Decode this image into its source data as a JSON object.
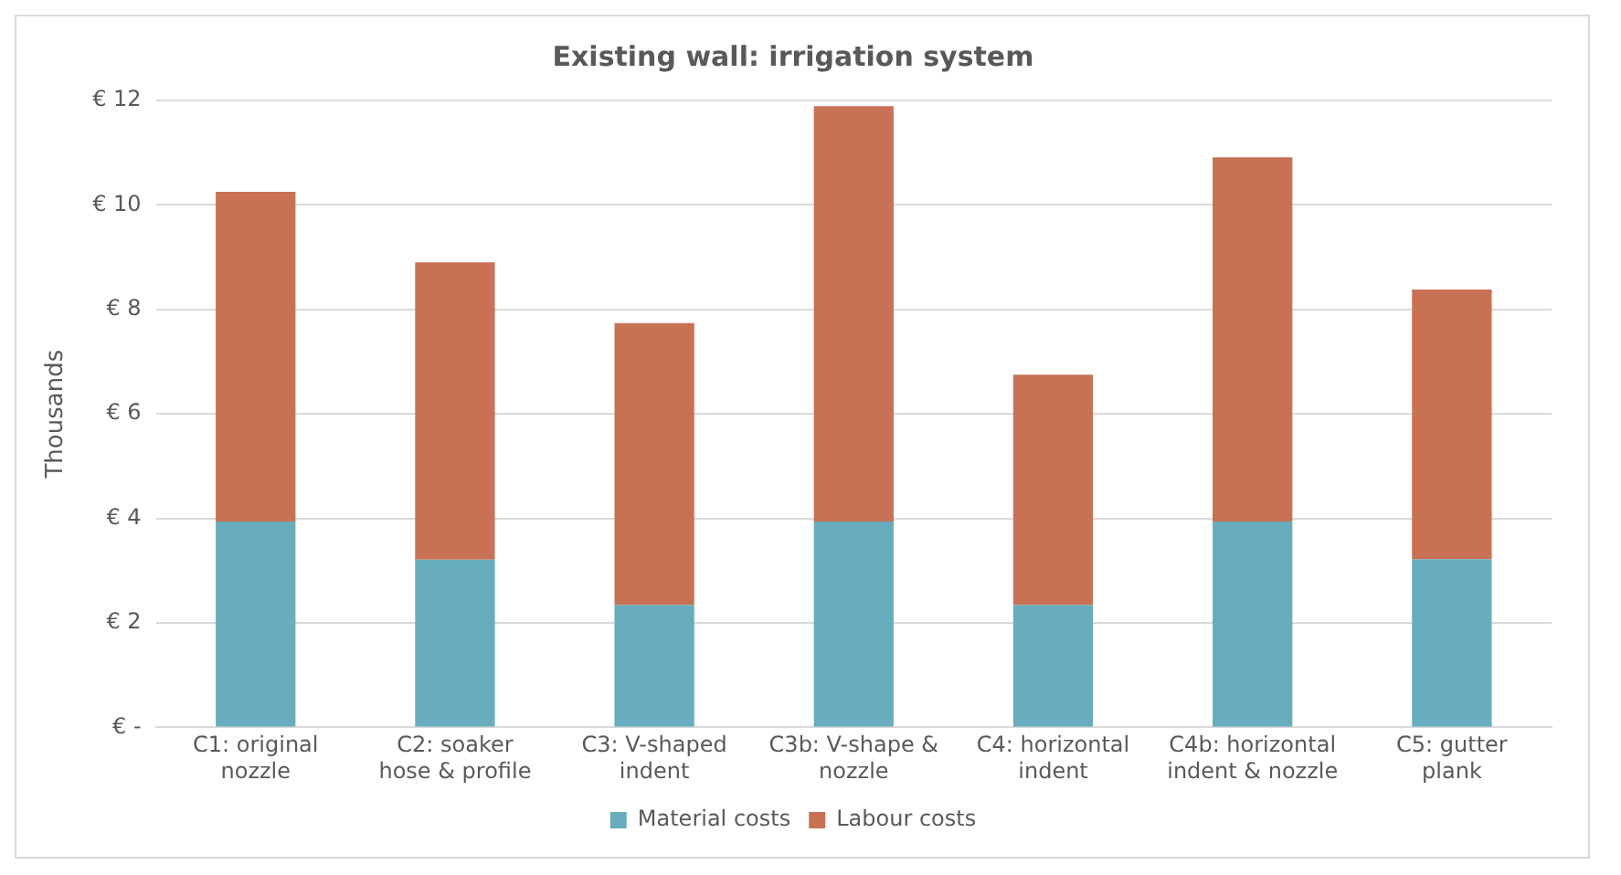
{
  "chart_data": {
    "type": "bar",
    "title": "Existing wall: irrigation system",
    "ylabel": "Thousands",
    "categories": [
      "C1: original nozzle",
      "C2: soaker hose & profile",
      "C3: V-shaped indent",
      "C3b: V-shape & nozzle",
      "C4: horizontal indent",
      "C4b: horizontal indent & nozzle",
      "C5: gutter plank"
    ],
    "series": [
      {
        "name": "Material costs",
        "color": "#67adbd",
        "values": [
          3.94,
          3.21,
          2.34,
          3.94,
          2.34,
          3.94,
          3.22
        ]
      },
      {
        "name": "Labour costs",
        "color": "#c87155",
        "values": [
          6.31,
          5.69,
          5.4,
          7.95,
          4.41,
          6.97,
          5.16
        ]
      }
    ],
    "stacked": true,
    "ylim": [
      0,
      12
    ],
    "yticks": [
      {
        "value": 0,
        "label": "€ -"
      },
      {
        "value": 2,
        "label": "€ 2"
      },
      {
        "value": 4,
        "label": "€ 4"
      },
      {
        "value": 6,
        "label": "€ 6"
      },
      {
        "value": 8,
        "label": "€ 8"
      },
      {
        "value": 10,
        "label": "€ 10"
      },
      {
        "value": 12,
        "label": "€ 12"
      }
    ],
    "grid": "y",
    "legend": "bottom"
  }
}
